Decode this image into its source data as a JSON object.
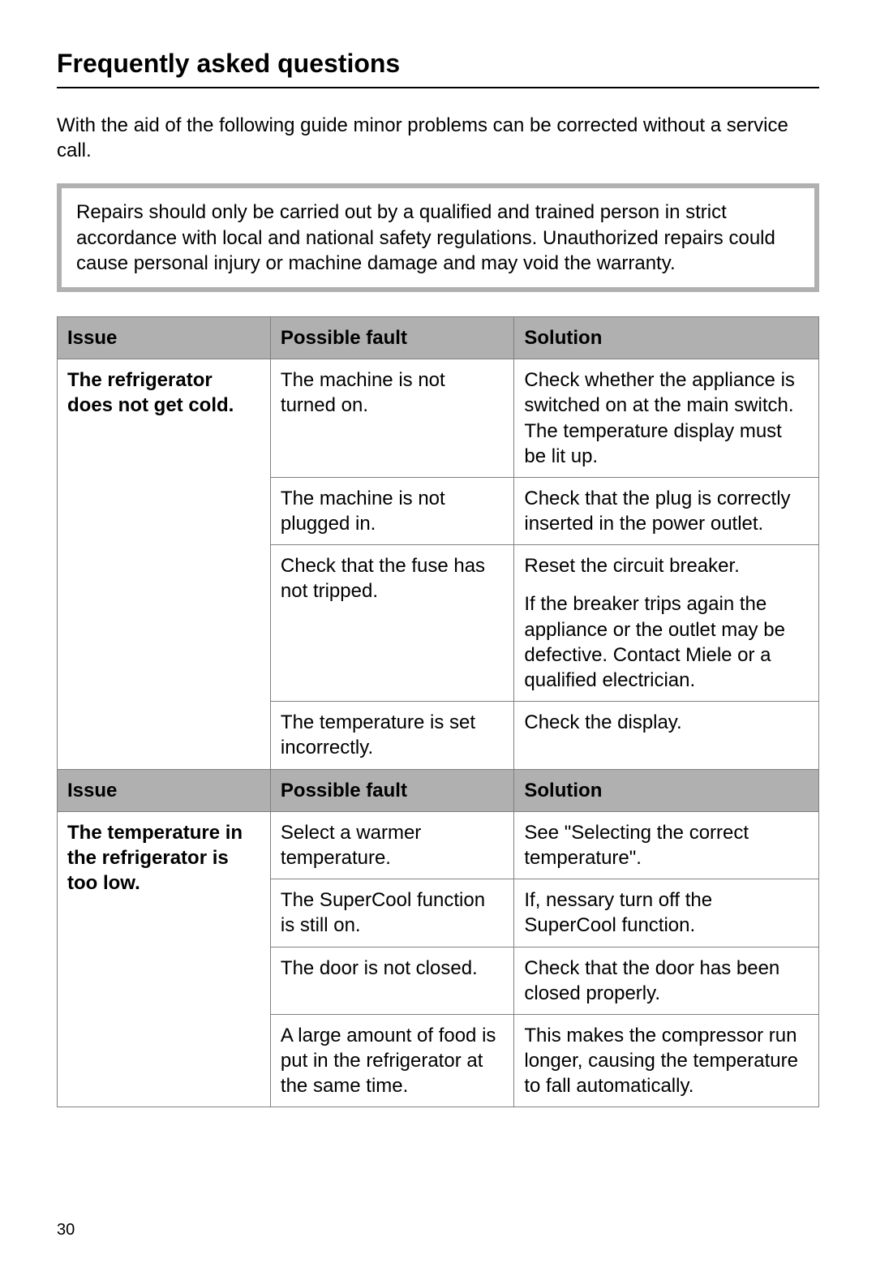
{
  "page_title": "Frequently asked questions",
  "intro_text": "With the aid of the following guide minor problems can be corrected without a service call.",
  "warning_text": "Repairs should only be carried out by a qualified and trained person in strict accordance with local and national safety regulations. Unauthorized repairs could cause personal injury or machine damage and may void the warranty.",
  "headers": {
    "issue": "Issue",
    "fault": "Possible fault",
    "solution": "Solution"
  },
  "section1": {
    "issue": "The refrigerator does not get cold.",
    "rows": [
      {
        "fault": "The machine is not turned on.",
        "solution": "Check whether the appliance is switched on at the main switch. The temperature display must be lit up."
      },
      {
        "fault": "The machine is not plugged in.",
        "solution": "Check that the plug is correctly inserted in the power outlet."
      },
      {
        "fault": "Check that the fuse has not tripped.",
        "solution1": "Reset the circuit breaker.",
        "solution2": "If the breaker trips again the appliance or the outlet may be defective. Contact Miele or a qualified electrician."
      },
      {
        "fault": "The temperature is set incorrectly.",
        "solution": "Check the display."
      }
    ]
  },
  "section2": {
    "issue": "The temperature in the refrigerator is too low.",
    "rows": [
      {
        "fault": "Select a warmer temperature.",
        "solution": "See \"Selecting the correct temperature\"."
      },
      {
        "fault": "The SuperCool function is still on.",
        "solution": "If, nessary turn off the SuperCool function."
      },
      {
        "fault": "The door is not closed.",
        "solution": "Check that the door has been closed properly."
      },
      {
        "fault": "A large amount of food is put in the refrigerator at the same time.",
        "solution": "This makes the compressor run longer, causing the temperature to fall automatically."
      }
    ]
  },
  "page_number": "30"
}
